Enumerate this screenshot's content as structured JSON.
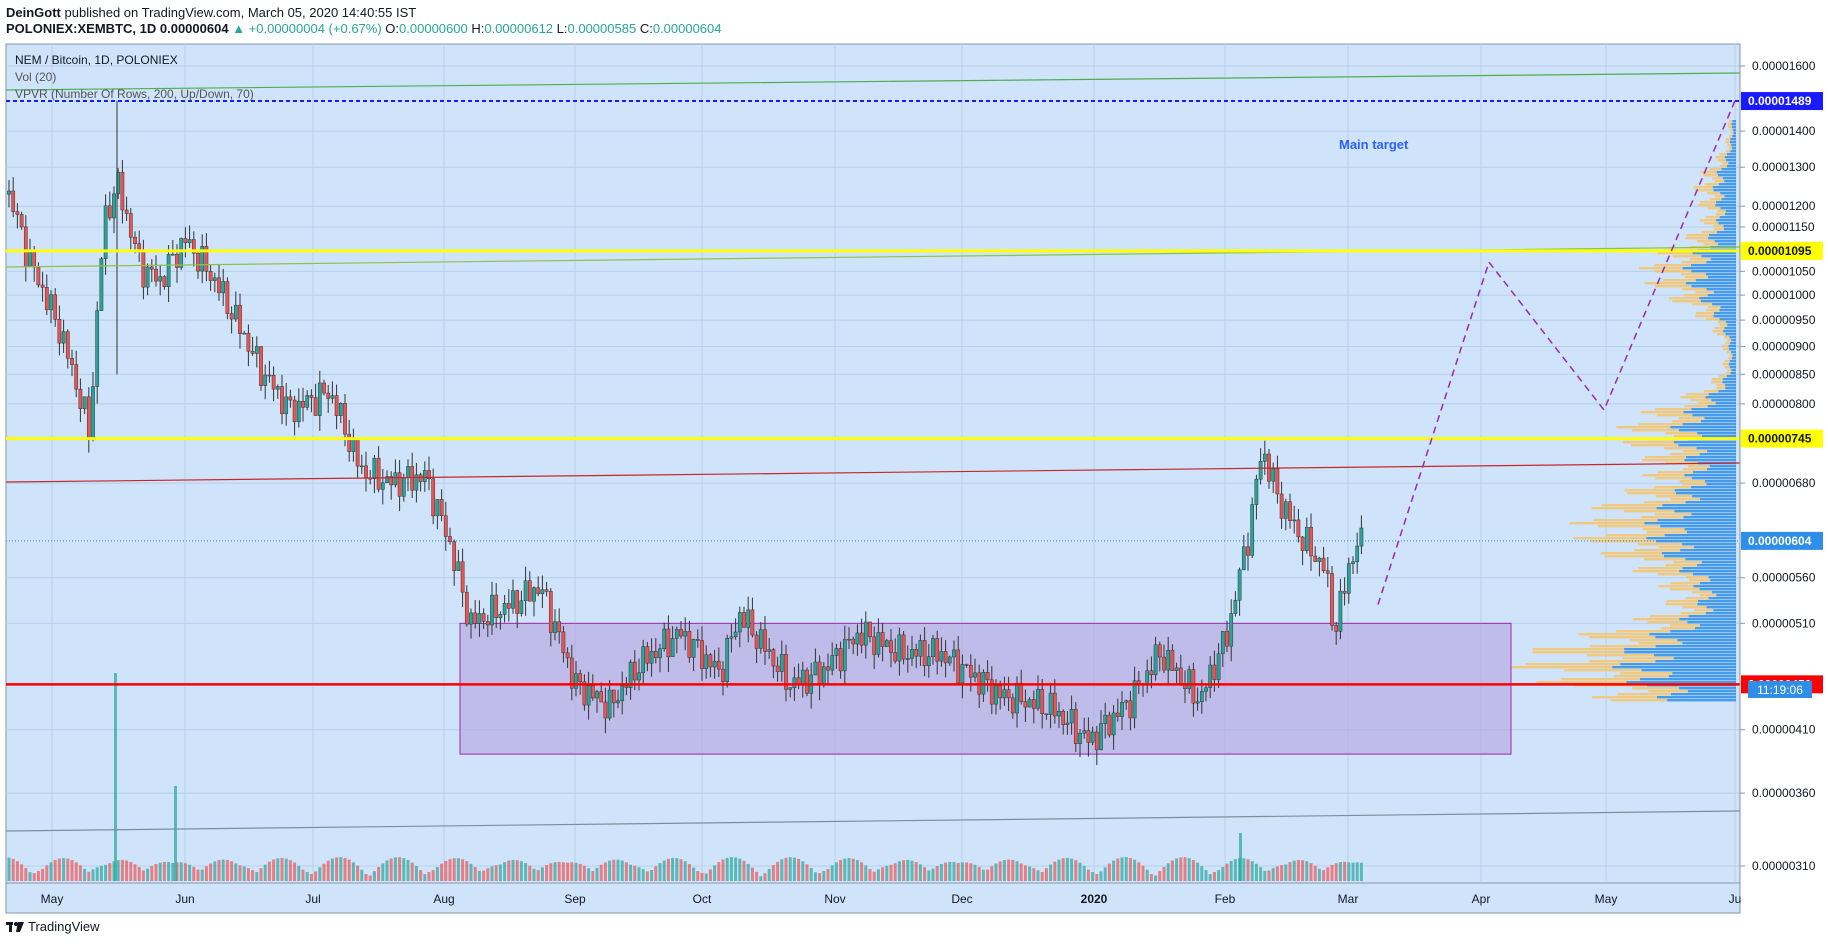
{
  "header": {
    "author": "DeinGott",
    "published_text": "published on TradingView.com, March 05, 2020 14:40:55 IST",
    "symbol": "POLONIEX:XEMBTC, 1D",
    "last": "0.00000604",
    "change": "▲ +0.00000004 (+0.67%)",
    "o_label": "O:",
    "o_value": "0.00000600",
    "h_label": "H:",
    "h_value": "0.00000612",
    "l_label": "L:",
    "l_value": "0.00000585",
    "c_label": "C:",
    "c_value": "0.00000604"
  },
  "legend": {
    "line1": "NEM / Bitcoin, 1D, POLONIEX",
    "line2": "Vol (20)",
    "line3": "VPVR (Number Of Rows, 200, Up/Down, 70)"
  },
  "annotation": "Main target",
  "countdown": "11:19:06",
  "footer": {
    "brand": "TradingView"
  },
  "colors": {
    "background": "#cfe3fb",
    "up": "#26a69a",
    "down": "#ef5350",
    "yellow": "#ffff00",
    "red_line": "#ff0000",
    "green_line": "#4caf50",
    "box_fill": "#b39ddb",
    "box_stroke": "#9c27b0",
    "dashed_path": "#9c27b0",
    "target_line": "#1a1aff",
    "vp_up": "#2e8ee8",
    "vp_down": "#f5c46a"
  },
  "chart_data": {
    "type": "candlestick",
    "scale": "log",
    "ylim": [
      2.9e-06,
      1.7e-06
    ],
    "x_ticks": [
      "May",
      "Jun",
      "Jul",
      "Aug",
      "Sep",
      "Oct",
      "Nov",
      "Dec",
      "2020",
      "Feb",
      "Mar",
      "Apr",
      "May",
      "Ju"
    ],
    "y_ticks": [
      "0.00001600",
      "0.00001400",
      "0.00001300",
      "0.00001200",
      "0.00001150",
      "0.00001050",
      "0.00001000",
      "0.00000950",
      "0.00000900",
      "0.00000850",
      "0.00000800",
      "0.00000680",
      "0.00000560",
      "0.00000510",
      "0.00000410",
      "0.00000360",
      "0.00000310"
    ],
    "price_labels": [
      {
        "value": "0.00001489",
        "color": "#1a1aff",
        "text_color": "#ffffff"
      },
      {
        "value": "0.00001095",
        "color": "#ffff00",
        "text_color": "#131722"
      },
      {
        "value": "0.00000745",
        "color": "#ffff00",
        "text_color": "#131722"
      },
      {
        "value": "0.00000604",
        "color": "#2e8ee8",
        "text_color": "#ffffff"
      },
      {
        "value": "0.00000450",
        "color": "#ff0000",
        "text_color": "#ffffff"
      }
    ],
    "horizontal_levels": [
      1.489e-05,
      1.095e-05,
      7.45e-06,
      4.5e-06,
      6.04e-06
    ],
    "consolidation_box": {
      "from": "Aug",
      "to": "Apr",
      "price_low": 3.9e-06,
      "price_high": 5.1e-06
    },
    "projection_path": [
      {
        "date": "Mar",
        "price": 5.3e-06
      },
      {
        "date": "Apr",
        "price": 1.07e-05
      },
      {
        "date": "May",
        "price": 7.9e-06
      },
      {
        "date": "Ju",
        "price": 1.49e-05
      }
    ],
    "ohlc_sample_last": {
      "open": 6e-06,
      "high": 6.12e-06,
      "low": 5.85e-06,
      "close": 6.04e-06
    }
  }
}
